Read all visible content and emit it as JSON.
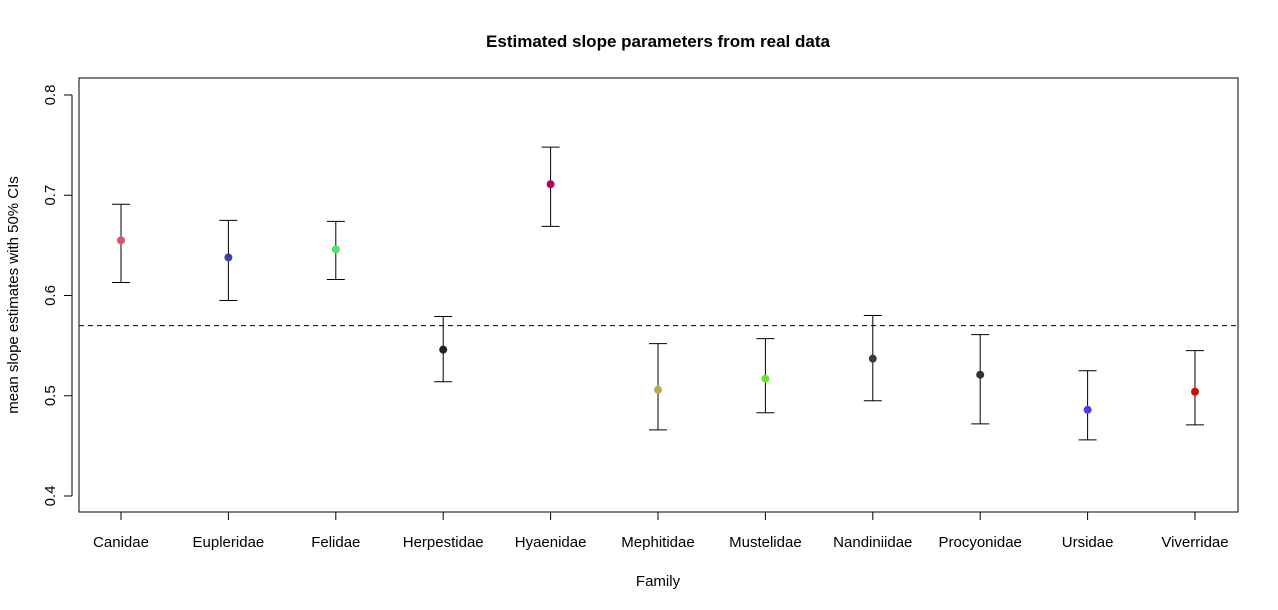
{
  "chart_data": {
    "type": "scatter",
    "title": "Estimated slope parameters from real data",
    "xlabel": "Family",
    "ylabel": "mean slope estimates with 50% CIs",
    "ylim": [
      0.4,
      0.8
    ],
    "yticks": [
      "0.4",
      "0.5",
      "0.6",
      "0.7",
      "0.8"
    ],
    "grid": false,
    "reference_line": {
      "y": 0.57,
      "style": "dashed"
    },
    "categories": [
      "Canidae",
      "Eupleridae",
      "Felidae",
      "Herpestidae",
      "Hyaenidae",
      "Mephitidae",
      "Mustelidae",
      "Nandiniidae",
      "Procyonidae",
      "Ursidae",
      "Viverridae"
    ],
    "points": [
      {
        "family": "Canidae",
        "mean": 0.655,
        "lower": 0.613,
        "upper": 0.691,
        "color": "#df536b"
      },
      {
        "family": "Eupleridae",
        "mean": 0.638,
        "lower": 0.595,
        "upper": 0.675,
        "color": "#3f3fa5"
      },
      {
        "family": "Felidae",
        "mean": 0.646,
        "lower": 0.616,
        "upper": 0.674,
        "color": "#4fe26e"
      },
      {
        "family": "Herpestidae",
        "mean": 0.546,
        "lower": 0.514,
        "upper": 0.579,
        "color": "#222222"
      },
      {
        "family": "Hyaenidae",
        "mean": 0.711,
        "lower": 0.669,
        "upper": 0.748,
        "color": "#b3035e"
      },
      {
        "family": "Mephitidae",
        "mean": 0.506,
        "lower": 0.466,
        "upper": 0.552,
        "color": "#b8a950"
      },
      {
        "family": "Mustelidae",
        "mean": 0.517,
        "lower": 0.483,
        "upper": 0.557,
        "color": "#6be42a"
      },
      {
        "family": "Nandiniidae",
        "mean": 0.537,
        "lower": 0.495,
        "upper": 0.58,
        "color": "#3a3a3a"
      },
      {
        "family": "Procyonidae",
        "mean": 0.521,
        "lower": 0.472,
        "upper": 0.561,
        "color": "#333333"
      },
      {
        "family": "Ursidae",
        "mean": 0.486,
        "lower": 0.456,
        "upper": 0.525,
        "color": "#4b40e0"
      },
      {
        "family": "Viverridae",
        "mean": 0.504,
        "lower": 0.471,
        "upper": 0.545,
        "color": "#cc0a0a"
      }
    ]
  }
}
